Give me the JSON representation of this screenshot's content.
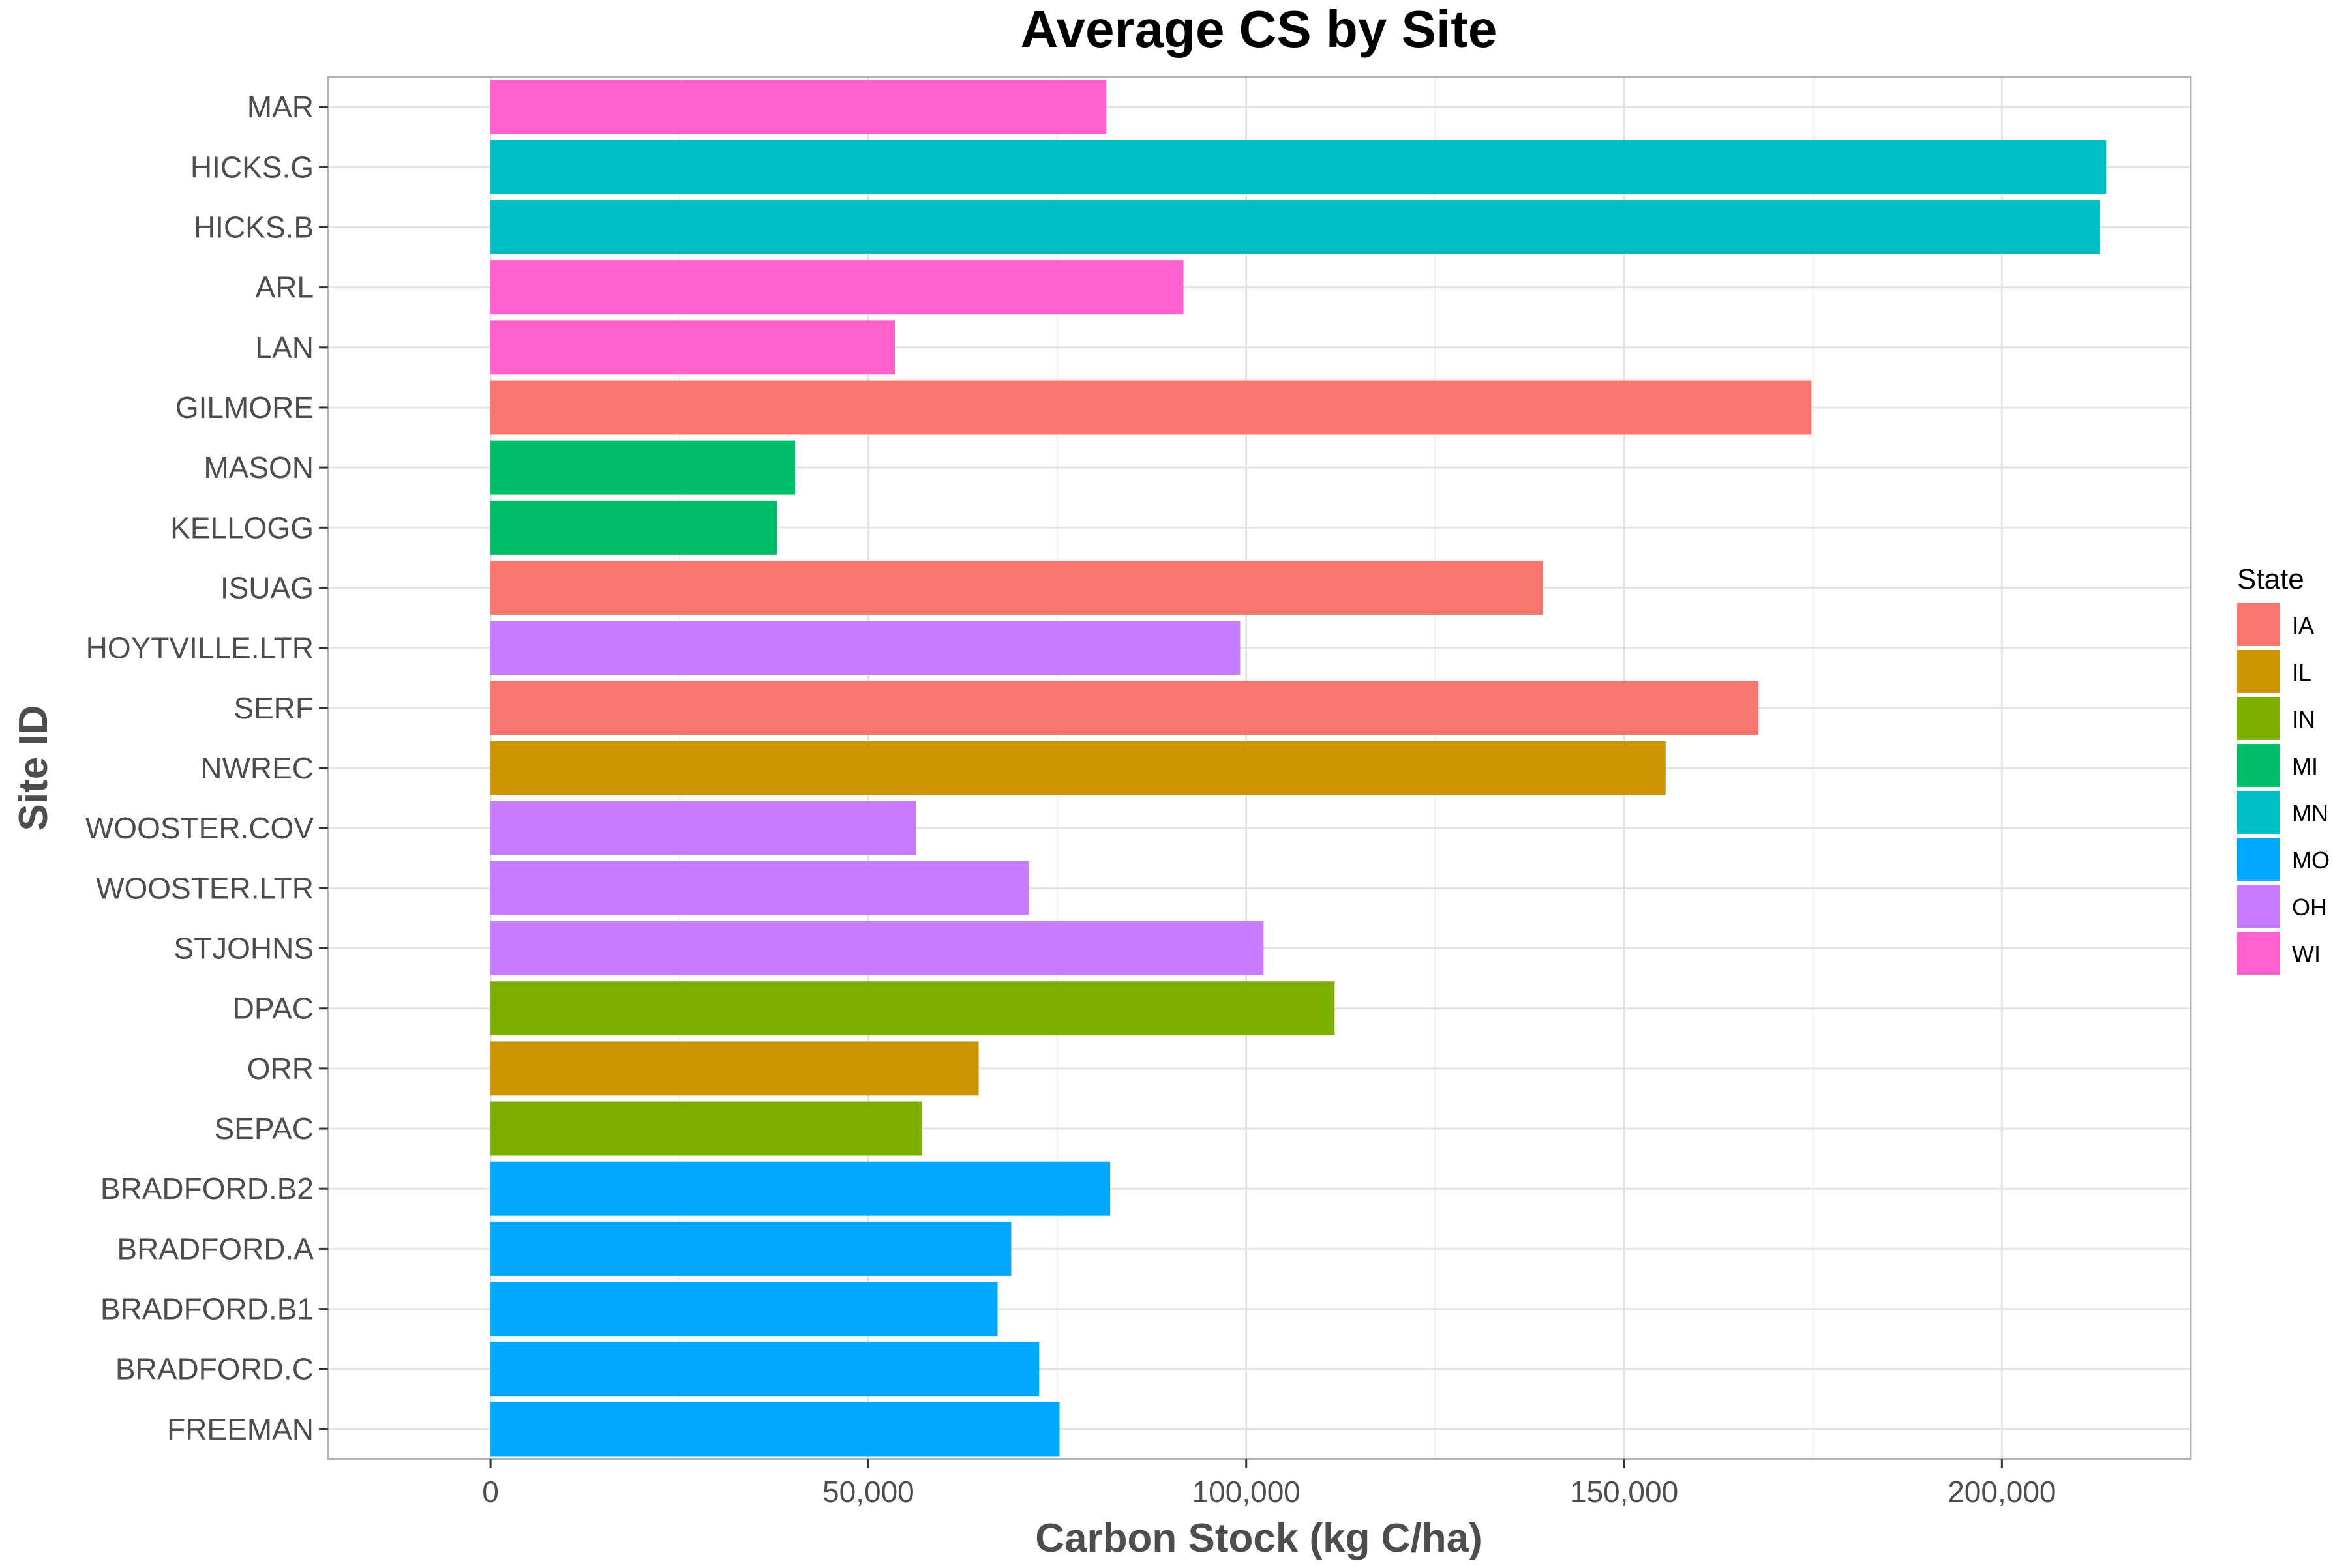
{
  "chart_data": {
    "type": "bar",
    "orientation": "horizontal",
    "title": "Average CS by Site",
    "xlabel": "Carbon Stock (kg C/ha)",
    "ylabel": "Site ID",
    "xlim": [
      -21500,
      225000
    ],
    "xticks": [
      0,
      50000,
      100000,
      150000,
      200000
    ],
    "xtick_labels": [
      "0",
      "50,000",
      "100,000",
      "150,000",
      "200,000"
    ],
    "grid": true,
    "legend": {
      "title": "State",
      "placement": "right",
      "entries": [
        {
          "label": "IA",
          "color": "#F8766D"
        },
        {
          "label": "IL",
          "color": "#CD9600"
        },
        {
          "label": "IN",
          "color": "#7CAE00"
        },
        {
          "label": "MI",
          "color": "#00BE67"
        },
        {
          "label": "MN",
          "color": "#00BFC4"
        },
        {
          "label": "MO",
          "color": "#00A9FF"
        },
        {
          "label": "OH",
          "color": "#C77CFF"
        },
        {
          "label": "WI",
          "color": "#FF61CC"
        }
      ]
    },
    "categories": [
      "MAR",
      "HICKS.G",
      "HICKS.B",
      "ARL",
      "LAN",
      "GILMORE",
      "MASON",
      "KELLOGG",
      "ISUAG",
      "HOYTVILLE.LTR",
      "SERF",
      "NWREC",
      "WOOSTER.COV",
      "WOOSTER.LTR",
      "STJOHNS",
      "DPAC",
      "ORR",
      "SEPAC",
      "BRADFORD.B2",
      "BRADFORD.A",
      "BRADFORD.B1",
      "BRADFORD.C",
      "FREEMAN"
    ],
    "values": [
      81500,
      213800,
      213000,
      91700,
      53500,
      174800,
      40300,
      37900,
      139300,
      99200,
      167800,
      155500,
      56300,
      71200,
      102300,
      111700,
      64600,
      57100,
      82000,
      68900,
      67100,
      72600,
      75300
    ],
    "states": [
      "WI",
      "MN",
      "MN",
      "WI",
      "WI",
      "IA",
      "MI",
      "MI",
      "IA",
      "OH",
      "IA",
      "IL",
      "OH",
      "OH",
      "OH",
      "IN",
      "IL",
      "IN",
      "MO",
      "MO",
      "MO",
      "MO",
      "MO"
    ]
  }
}
